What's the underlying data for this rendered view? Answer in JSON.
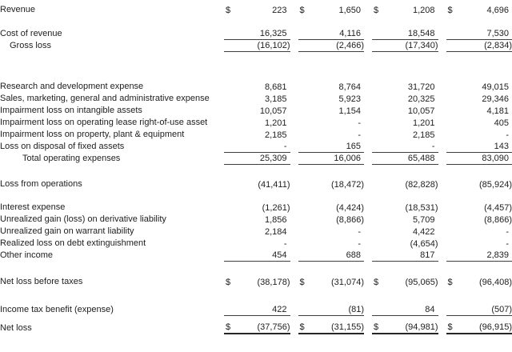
{
  "table": {
    "title": "statement-of-operations",
    "currency_symbol": "$",
    "num_value_columns": 4,
    "colors": {
      "background": "#ffffff",
      "text": "#212121",
      "rule_line": "#3f3f3f",
      "total_rule_line": "#262626"
    },
    "rows": [
      {
        "type": "data",
        "label": "Revenue",
        "indent": 0,
        "dollar": true,
        "border": "none",
        "values": [
          "223",
          "1,650",
          "1,208",
          "4,696"
        ]
      },
      {
        "type": "spacer",
        "height": 15
      },
      {
        "type": "data",
        "label": "Cost of revenue",
        "indent": 0,
        "dollar": false,
        "border": "single",
        "values": [
          "16,325",
          "4,116",
          "18,548",
          "7,530"
        ]
      },
      {
        "type": "data",
        "label": "Gross loss",
        "indent": 1,
        "dollar": false,
        "border": "single",
        "values": [
          "(16,102)",
          "(2,466)",
          "(17,340)",
          "(2,834)"
        ]
      },
      {
        "type": "spacer",
        "height": 36
      },
      {
        "type": "data",
        "label": "Research and development expense",
        "indent": 0,
        "dollar": false,
        "border": "none",
        "values": [
          "8,681",
          "8,764",
          "31,720",
          "49,015"
        ]
      },
      {
        "type": "data",
        "label": "Sales, marketing, general and administrative expense",
        "indent": 0,
        "dollar": false,
        "border": "none",
        "values": [
          "3,185",
          "5,923",
          "20,325",
          "29,346"
        ]
      },
      {
        "type": "data",
        "label": "Impairment loss on intangible assets",
        "indent": 0,
        "dollar": false,
        "border": "none",
        "values": [
          "10,057",
          "1,154",
          "10,057",
          "4,181"
        ]
      },
      {
        "type": "data",
        "label": "Impairment loss on operating lease right-of-use asset",
        "indent": 0,
        "dollar": false,
        "border": "none",
        "values": [
          "1,201",
          "-",
          "1,201",
          "405"
        ]
      },
      {
        "type": "data",
        "label": "Impairment loss on property, plant & equipment",
        "indent": 0,
        "dollar": false,
        "border": "none",
        "values": [
          "2,185",
          "-",
          "2,185",
          "-"
        ]
      },
      {
        "type": "data",
        "label": "Loss on disposal of fixed assets",
        "indent": 0,
        "dollar": false,
        "border": "single",
        "values": [
          "-",
          "165",
          "-",
          "143"
        ]
      },
      {
        "type": "data",
        "label": "Total operating expenses",
        "indent": 2,
        "dollar": false,
        "border": "single",
        "values": [
          "25,309",
          "16,006",
          "65,488",
          "83,090"
        ]
      },
      {
        "type": "spacer",
        "height": 17
      },
      {
        "type": "data",
        "label": "Loss from operations",
        "indent": 0,
        "dollar": false,
        "border": "none",
        "values": [
          "(41,411)",
          "(18,472)",
          "(82,828)",
          "(85,924)"
        ]
      },
      {
        "type": "spacer",
        "height": 14
      },
      {
        "type": "data",
        "label": "Interest expense",
        "indent": 0,
        "dollar": false,
        "border": "none",
        "values": [
          "(1,261)",
          "(4,424)",
          "(18,531)",
          "(4,457)"
        ]
      },
      {
        "type": "data",
        "label": "Unrealized gain (loss) on derivative liability",
        "indent": 0,
        "dollar": false,
        "border": "none",
        "values": [
          "1,856",
          "(8,866)",
          "5,709",
          "(8,866)"
        ]
      },
      {
        "type": "data",
        "label": "Unrealized gain on warrant liability",
        "indent": 0,
        "dollar": false,
        "border": "none",
        "values": [
          "2,184",
          "-",
          "4,422",
          "-"
        ]
      },
      {
        "type": "data",
        "label": "Realized loss on debt extinguishment",
        "indent": 0,
        "dollar": false,
        "border": "none",
        "values": [
          "-",
          "-",
          "(4,654)",
          "-"
        ]
      },
      {
        "type": "data",
        "label": "Other income",
        "indent": 0,
        "dollar": false,
        "border": "single",
        "values": [
          "454",
          "688",
          "817",
          "2,839"
        ]
      },
      {
        "type": "spacer",
        "height": 18
      },
      {
        "type": "data",
        "label": "Net loss before taxes",
        "indent": 0,
        "dollar": true,
        "border": "none",
        "values": [
          "(38,178)",
          "(31,074)",
          "(95,065)",
          "(96,408)"
        ]
      },
      {
        "type": "spacer",
        "height": 20
      },
      {
        "type": "data",
        "label": "Income tax benefit (expense)",
        "indent": 0,
        "dollar": false,
        "border": "single",
        "values": [
          "422",
          "(81)",
          "84",
          "(507)"
        ]
      },
      {
        "type": "spacer",
        "height": 8
      },
      {
        "type": "data",
        "label": "Net loss",
        "indent": 0,
        "dollar": true,
        "border": "double",
        "values": [
          "(37,756)",
          "(31,155)",
          "(94,981)",
          "(96,915)"
        ]
      }
    ]
  }
}
